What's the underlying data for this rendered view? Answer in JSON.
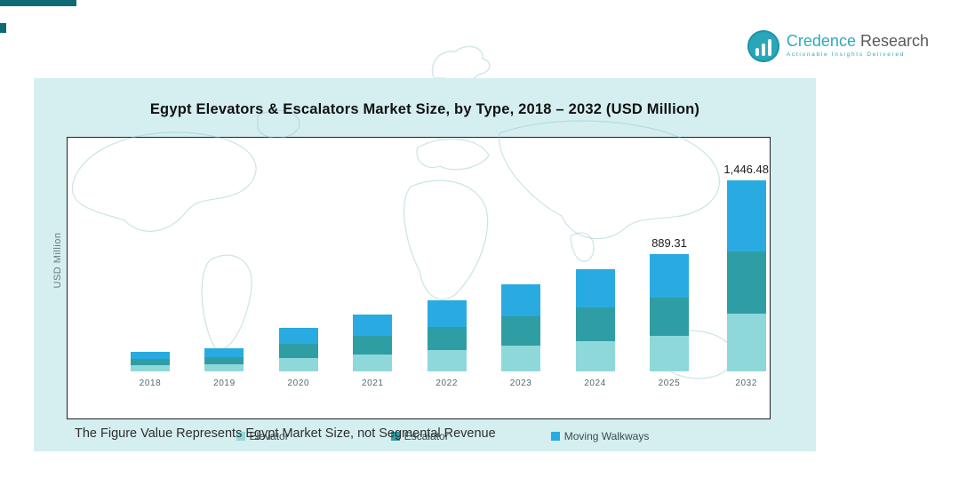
{
  "logo": {
    "brand_primary": "Credence",
    "brand_secondary": "Research",
    "tagline": "Actionable Insights Delivered"
  },
  "page": {
    "note": "The Figure Value Represents Egypt Market Size, not Segmental Revenue"
  },
  "chart_data": {
    "type": "bar",
    "stacked": true,
    "title": "Egypt Elevators & Escalators Market Size, by Type, 2018 – 2032 (USD Million)",
    "xlabel": "",
    "ylabel": "USD Million",
    "legend_position": "bottom-inside",
    "grid": false,
    "categories": [
      "2018",
      "2019",
      "2020",
      "2021",
      "2022",
      "2023",
      "2024",
      "2025",
      "2032"
    ],
    "series": [
      {
        "name": "Elevator",
        "color": "#8fd8da",
        "values": [
          45,
          53,
          99,
          129,
          160,
          198,
          232,
          267.0,
          434.0
        ]
      },
      {
        "name": "Escalator",
        "color": "#2f9da4",
        "values": [
          50,
          59,
          109,
          142,
          177,
          218,
          256,
          293.0,
          477.0
        ]
      },
      {
        "name": "Moving Walkways",
        "color": "#29abe2",
        "values": [
          55,
          66,
          122,
          159,
          198,
          244,
          287,
          329.31,
          535.48
        ]
      }
    ],
    "totals": [
      150,
      178,
      330,
      430,
      535,
      660,
      775,
      889.31,
      1446.48
    ],
    "data_labels": [
      "",
      "",
      "",
      "",
      "",
      "",
      "",
      "889.31",
      "1,446.48"
    ],
    "note": "Only 2025 (889.31) and 2032 (1,446.48) totals are labeled in the figure; other totals and the segment split are estimated from bar heights."
  },
  "colors": {
    "panel_background": "#d5eff0",
    "map_outline": "#8fc3c7",
    "accent_bar": "#0e6a72",
    "logo_teal": "#2fa9ba",
    "logo_gray": "#58595b",
    "chart_border": "#222222",
    "title_text": "#111111"
  }
}
